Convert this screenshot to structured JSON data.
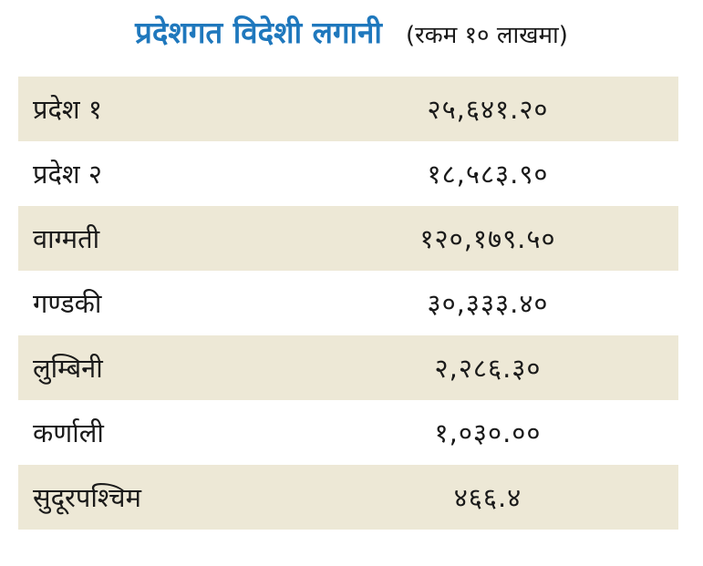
{
  "header": {
    "title": "प्रदेशगत विदेशी लगानी",
    "subtitle": "(रकम १० लाखमा)"
  },
  "table": {
    "rows": [
      {
        "name": "प्रदेश १",
        "value": "२५,६४१.२०"
      },
      {
        "name": "प्रदेश २",
        "value": "१८,५८३.९०"
      },
      {
        "name": "वाग्मती",
        "value": "१२०,१७९.५०"
      },
      {
        "name": "गण्डकी",
        "value": "३०,३३३.४०"
      },
      {
        "name": "लुम्बिनी",
        "value": "२,२८६.३०"
      },
      {
        "name": "कर्णाली",
        "value": "१,०३०.००"
      },
      {
        "name": "सुदूरपश्चिम",
        "value": "४६६.४"
      }
    ]
  },
  "colors": {
    "title": "#1f78bd",
    "row_shade": "#ede8d6",
    "text": "#1a1a1a"
  }
}
